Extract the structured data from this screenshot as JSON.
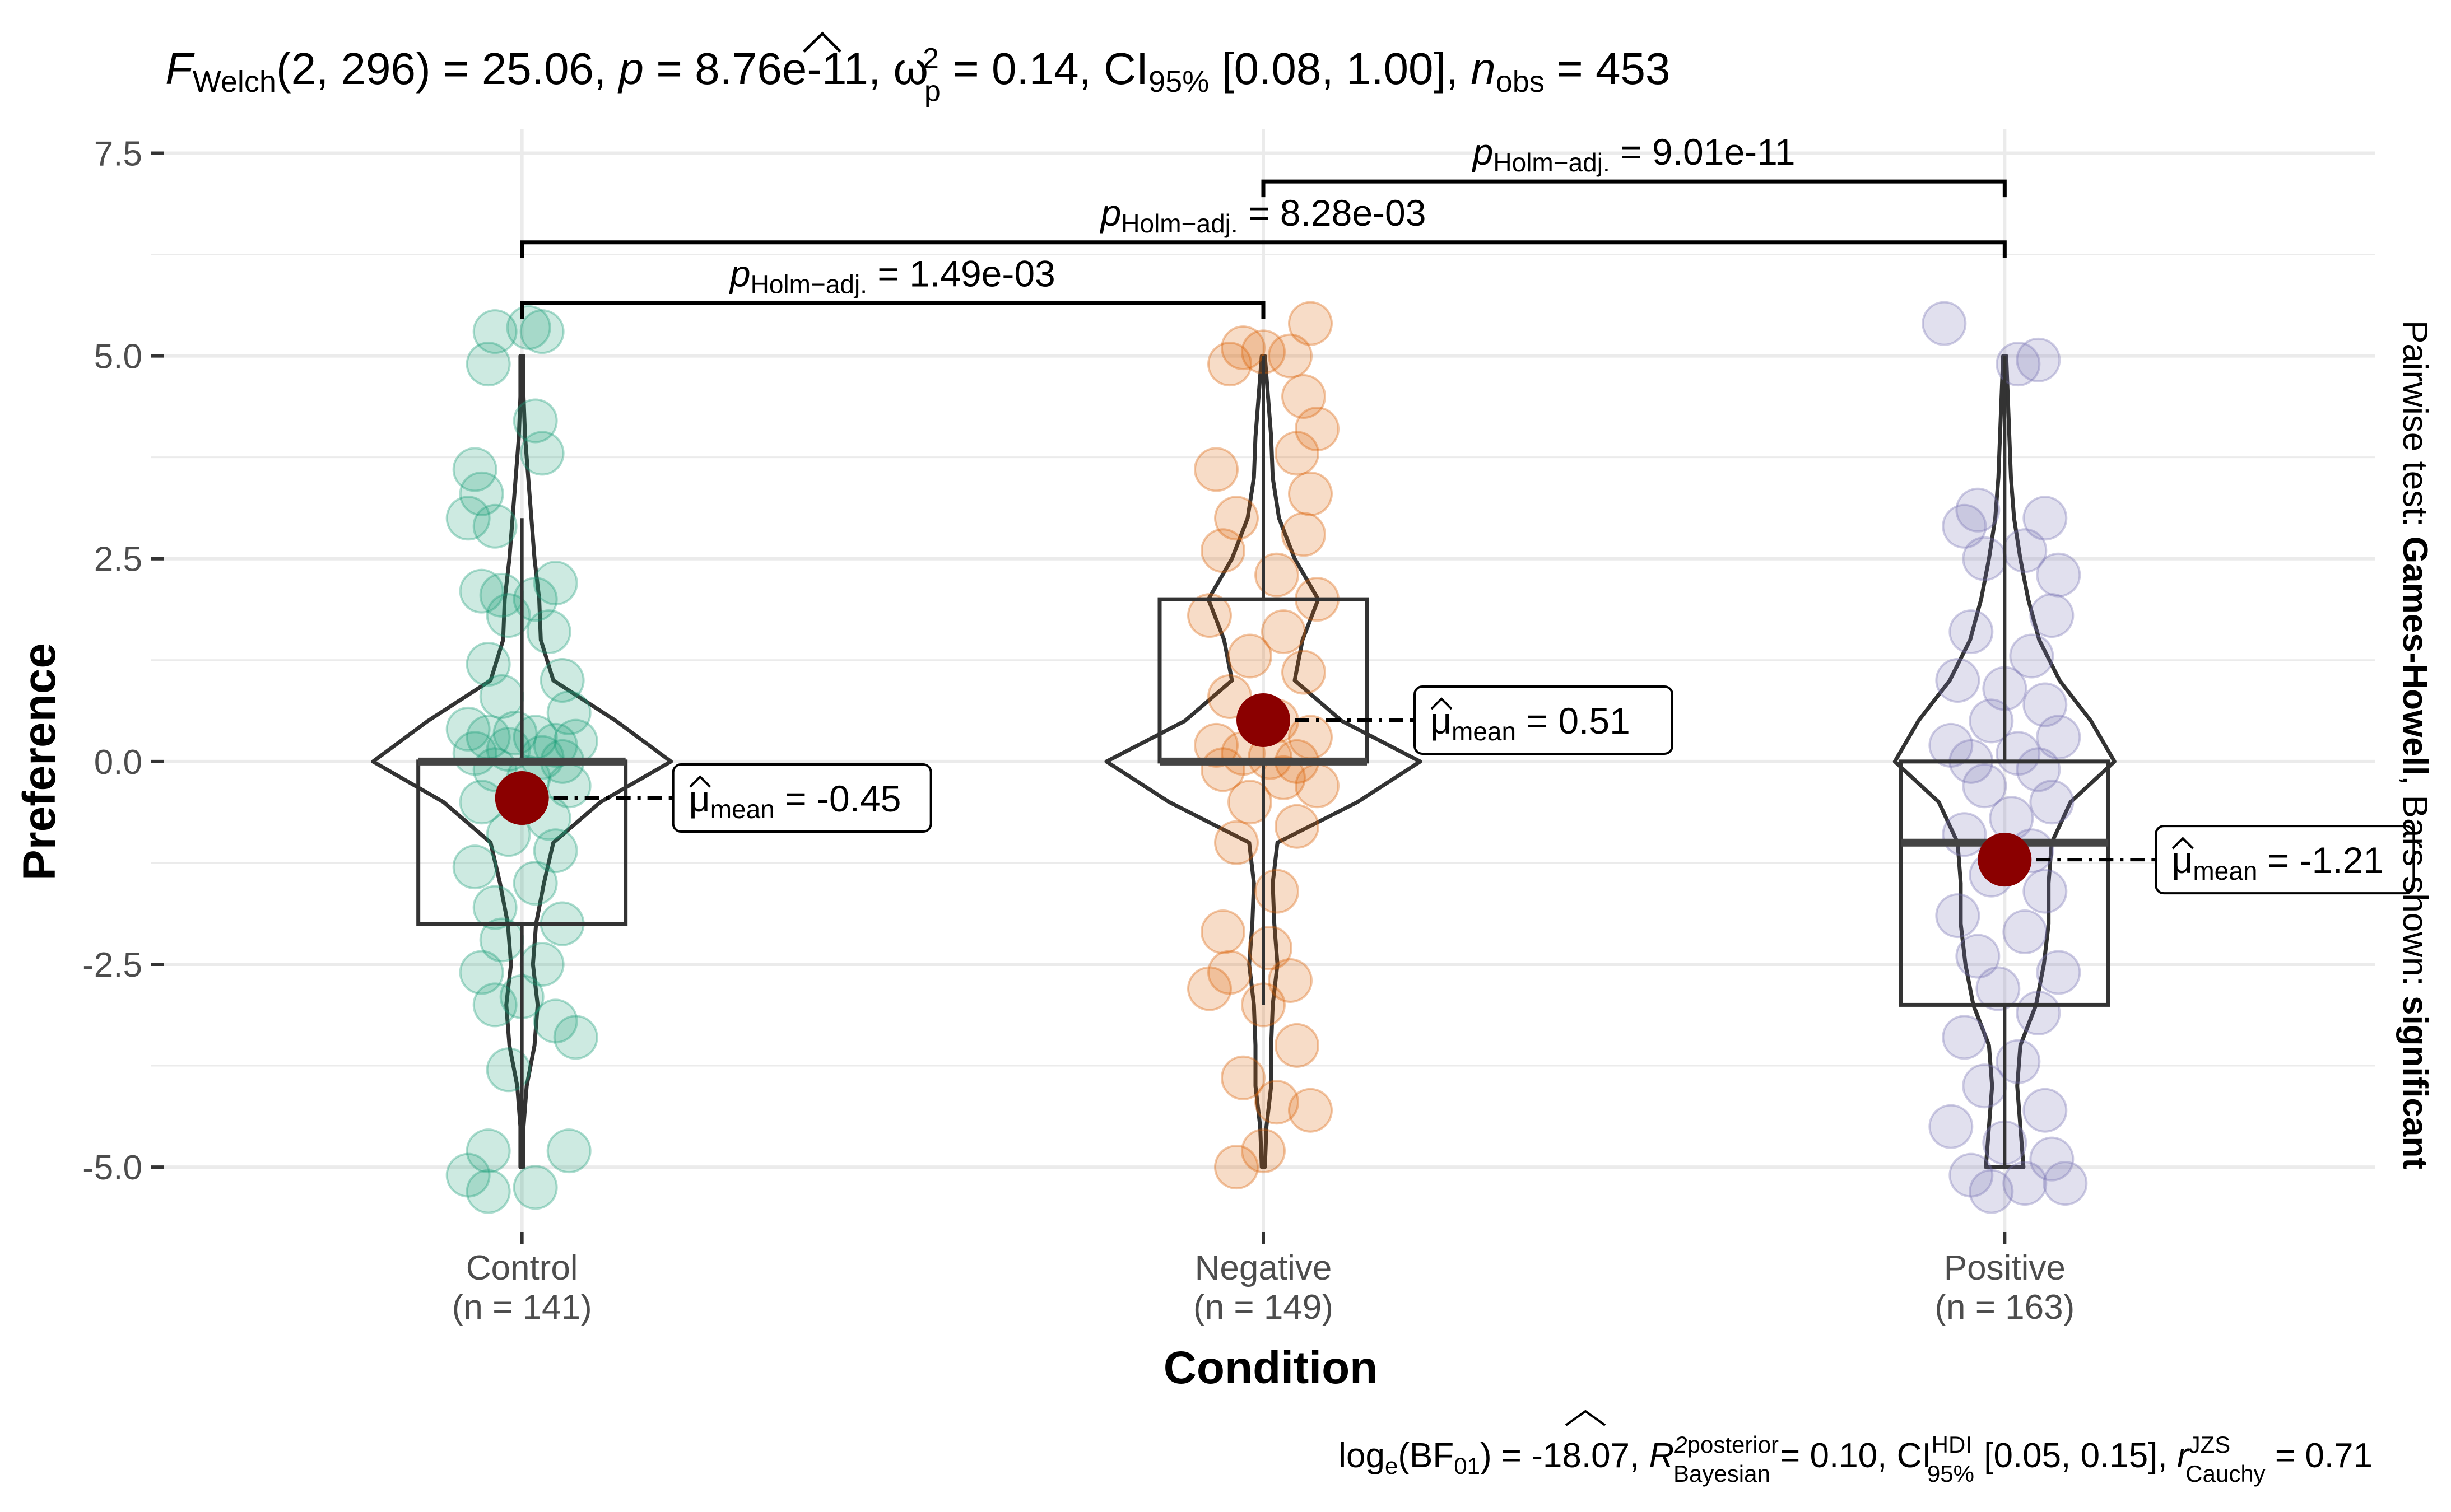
{
  "chart_data": {
    "type": "violin-box-scatter",
    "title": {
      "welch_prefix": "F",
      "welch_sub": "Welch",
      "welch_df": "(2, 296) = 25.06, ",
      "p_label": "p",
      "p_value": " = 8.76e-11, ",
      "omega_label": "ω",
      "omega_sup": "2",
      "omega_sub": "p",
      "omega_value": " = 0.14, CI",
      "ci_sub": "95%",
      "ci_value": " [0.08, 1.00], ",
      "n_label": "n",
      "n_sub": "obs",
      "n_value": " = 453"
    },
    "caption": {
      "log_prefix": "log",
      "log_sub": "e",
      "bf": "(BF",
      "bf_sub": "01",
      "bf_value": ") = -18.07, ",
      "r2": "R",
      "r2_sup": "2",
      "posterior_sup": "posterior",
      "bayesian_sub": "Bayesian",
      "r2_value": " = 0.10, CI",
      "hdi_sup": "HDI",
      "hdi_sub": "95%",
      "hdi_value": " [0.05, 0.15], ",
      "r_label": "r",
      "jzs_sup": "JZS",
      "cauchy_sub": "Cauchy",
      "r_value": " = 0.71"
    },
    "xlabel": "Condition",
    "ylabel": "Preference",
    "right_label": {
      "prefix": "Pairwise test: ",
      "test": "Games-Howell",
      "middle": ", Bars shown: ",
      "shown": "significant"
    },
    "ylim": [
      -5.8,
      7.8
    ],
    "yticks": [
      -5.0,
      -2.5,
      0.0,
      2.5,
      5.0,
      7.5
    ],
    "ytick_labels": [
      "-5.0",
      "-2.5",
      "0.0",
      "2.5",
      "5.0",
      "7.5"
    ],
    "grid": true,
    "mean_symbol": "μ",
    "mean_sub": "mean",
    "groups": [
      {
        "name": "Control",
        "n_label": "(n = 141)",
        "color": "#1b9e77",
        "box": {
          "q1": -2.0,
          "median": 0.0,
          "q3": 0.0,
          "whisker_low": -5.0,
          "whisker_high": 3.0
        },
        "mean": -0.45,
        "mean_label": " = -0.45",
        "violin": [
          [
            -5.0,
            0.01
          ],
          [
            -4.5,
            0.01
          ],
          [
            -4.0,
            0.03
          ],
          [
            -3.5,
            0.08
          ],
          [
            -3.0,
            0.1
          ],
          [
            -2.5,
            0.07
          ],
          [
            -2.0,
            0.09
          ],
          [
            -1.5,
            0.14
          ],
          [
            -1.0,
            0.2
          ],
          [
            -0.5,
            0.5
          ],
          [
            0.0,
            0.95
          ],
          [
            0.5,
            0.6
          ],
          [
            1.0,
            0.2
          ],
          [
            1.5,
            0.12
          ],
          [
            2.0,
            0.11
          ],
          [
            2.5,
            0.08
          ],
          [
            3.0,
            0.06
          ],
          [
            3.5,
            0.04
          ],
          [
            4.0,
            0.02
          ],
          [
            4.5,
            0.01
          ],
          [
            5.0,
            0.01
          ]
        ],
        "points": [
          [
            -0.04,
            5.3
          ],
          [
            0.01,
            5.35
          ],
          [
            0.03,
            5.3
          ],
          [
            -0.05,
            4.9
          ],
          [
            0.02,
            4.2
          ],
          [
            0.03,
            3.8
          ],
          [
            -0.07,
            3.6
          ],
          [
            -0.06,
            3.3
          ],
          [
            -0.08,
            3.0
          ],
          [
            -0.04,
            2.9
          ],
          [
            -0.06,
            2.1
          ],
          [
            -0.03,
            2.05
          ],
          [
            0.02,
            2.0
          ],
          [
            0.05,
            2.2
          ],
          [
            -0.02,
            1.8
          ],
          [
            0.04,
            1.6
          ],
          [
            -0.05,
            1.2
          ],
          [
            0.06,
            1.0
          ],
          [
            -0.03,
            0.8
          ],
          [
            0.07,
            0.6
          ],
          [
            -0.08,
            0.4
          ],
          [
            -0.05,
            0.3
          ],
          [
            -0.01,
            0.35
          ],
          [
            0.02,
            0.3
          ],
          [
            0.05,
            0.2
          ],
          [
            0.08,
            0.25
          ],
          [
            -0.07,
            0.1
          ],
          [
            -0.02,
            0.15
          ],
          [
            0.03,
            0.05
          ],
          [
            0.06,
            0.0
          ],
          [
            -0.04,
            -0.1
          ],
          [
            0.01,
            -0.2
          ],
          [
            0.07,
            -0.3
          ],
          [
            -0.06,
            -0.5
          ],
          [
            0.04,
            -0.7
          ],
          [
            -0.02,
            -0.9
          ],
          [
            0.05,
            -1.1
          ],
          [
            -0.07,
            -1.3
          ],
          [
            0.02,
            -1.5
          ],
          [
            -0.04,
            -1.8
          ],
          [
            0.06,
            -2.0
          ],
          [
            -0.03,
            -2.2
          ],
          [
            0.03,
            -2.5
          ],
          [
            -0.06,
            -2.6
          ],
          [
            0.0,
            -2.9
          ],
          [
            -0.04,
            -3.0
          ],
          [
            0.05,
            -3.2
          ],
          [
            0.08,
            -3.4
          ],
          [
            -0.02,
            -3.8
          ],
          [
            -0.05,
            -4.8
          ],
          [
            0.07,
            -4.8
          ],
          [
            -0.08,
            -5.1
          ],
          [
            -0.05,
            -5.3
          ],
          [
            0.02,
            -5.25
          ]
        ]
      },
      {
        "name": "Negative",
        "n_label": "(n = 149)",
        "color": "#d95f02",
        "box": {
          "q1": 0.0,
          "median": 0.0,
          "q3": 2.0,
          "whisker_low": -3.0,
          "whisker_high": 5.0
        },
        "mean": 0.51,
        "mean_label": " = 0.51",
        "violin": [
          [
            -5.0,
            0.01
          ],
          [
            -4.5,
            0.02
          ],
          [
            -4.0,
            0.05
          ],
          [
            -3.5,
            0.05
          ],
          [
            -3.0,
            0.06
          ],
          [
            -2.5,
            0.09
          ],
          [
            -2.0,
            0.07
          ],
          [
            -1.5,
            0.06
          ],
          [
            -1.0,
            0.09
          ],
          [
            -0.5,
            0.6
          ],
          [
            0.0,
            1.0
          ],
          [
            0.5,
            0.5
          ],
          [
            1.0,
            0.2
          ],
          [
            1.5,
            0.25
          ],
          [
            2.0,
            0.35
          ],
          [
            2.5,
            0.2
          ],
          [
            3.0,
            0.1
          ],
          [
            3.5,
            0.06
          ],
          [
            4.0,
            0.05
          ],
          [
            4.5,
            0.03
          ],
          [
            5.0,
            0.01
          ]
        ],
        "points": [
          [
            -0.03,
            5.1
          ],
          [
            0.0,
            5.05
          ],
          [
            0.04,
            5.0
          ],
          [
            0.07,
            5.4
          ],
          [
            -0.05,
            4.9
          ],
          [
            0.06,
            4.5
          ],
          [
            0.08,
            4.1
          ],
          [
            -0.07,
            3.6
          ],
          [
            0.05,
            3.8
          ],
          [
            0.07,
            3.3
          ],
          [
            -0.04,
            3.0
          ],
          [
            0.06,
            2.8
          ],
          [
            -0.06,
            2.6
          ],
          [
            0.02,
            2.3
          ],
          [
            0.08,
            2.0
          ],
          [
            -0.08,
            1.8
          ],
          [
            0.03,
            1.6
          ],
          [
            -0.02,
            1.3
          ],
          [
            0.06,
            1.1
          ],
          [
            -0.05,
            0.8
          ],
          [
            0.02,
            0.5
          ],
          [
            0.07,
            0.3
          ],
          [
            -0.07,
            0.2
          ],
          [
            -0.03,
            0.1
          ],
          [
            0.01,
            0.05
          ],
          [
            0.05,
            0.0
          ],
          [
            -0.06,
            -0.1
          ],
          [
            0.03,
            -0.2
          ],
          [
            0.08,
            -0.3
          ],
          [
            -0.02,
            -0.5
          ],
          [
            0.05,
            -0.8
          ],
          [
            -0.04,
            -1.0
          ],
          [
            0.02,
            -1.6
          ],
          [
            -0.06,
            -2.1
          ],
          [
            0.01,
            -2.3
          ],
          [
            -0.05,
            -2.6
          ],
          [
            0.04,
            -2.7
          ],
          [
            -0.08,
            -2.8
          ],
          [
            0.0,
            -3.0
          ],
          [
            0.05,
            -3.5
          ],
          [
            -0.03,
            -3.9
          ],
          [
            0.07,
            -4.3
          ],
          [
            0.02,
            -4.2
          ],
          [
            -0.04,
            -5.0
          ],
          [
            0.0,
            -4.8
          ]
        ]
      },
      {
        "name": "Positive",
        "n_label": "(n = 163)",
        "color": "#7570b3",
        "box": {
          "q1": -3.0,
          "median": -1.0,
          "q3": 0.0,
          "whisker_low": -5.0,
          "whisker_high": 5.0
        },
        "mean": -1.21,
        "mean_label": " = -1.21",
        "violin": [
          [
            -5.0,
            0.12
          ],
          [
            -4.5,
            0.1
          ],
          [
            -4.0,
            0.08
          ],
          [
            -3.5,
            0.1
          ],
          [
            -3.0,
            0.2
          ],
          [
            -2.5,
            0.25
          ],
          [
            -2.0,
            0.28
          ],
          [
            -1.5,
            0.28
          ],
          [
            -1.0,
            0.3
          ],
          [
            -0.5,
            0.42
          ],
          [
            0.0,
            0.7
          ],
          [
            0.5,
            0.55
          ],
          [
            1.0,
            0.35
          ],
          [
            1.5,
            0.22
          ],
          [
            2.0,
            0.15
          ],
          [
            2.5,
            0.1
          ],
          [
            3.0,
            0.06
          ],
          [
            3.5,
            0.04
          ],
          [
            4.0,
            0.03
          ],
          [
            4.5,
            0.02
          ],
          [
            5.0,
            0.01
          ]
        ],
        "points": [
          [
            -0.09,
            5.4
          ],
          [
            0.02,
            4.9
          ],
          [
            0.05,
            4.95
          ],
          [
            -0.04,
            3.1
          ],
          [
            0.06,
            3.0
          ],
          [
            -0.06,
            2.9
          ],
          [
            0.03,
            2.6
          ],
          [
            -0.03,
            2.5
          ],
          [
            0.08,
            2.3
          ],
          [
            0.07,
            1.8
          ],
          [
            -0.05,
            1.6
          ],
          [
            0.04,
            1.3
          ],
          [
            -0.07,
            1.0
          ],
          [
            0.0,
            0.9
          ],
          [
            0.06,
            0.7
          ],
          [
            -0.02,
            0.5
          ],
          [
            0.08,
            0.3
          ],
          [
            -0.08,
            0.2
          ],
          [
            0.02,
            0.1
          ],
          [
            -0.05,
            0.0
          ],
          [
            0.05,
            -0.1
          ],
          [
            -0.03,
            -0.3
          ],
          [
            0.07,
            -0.5
          ],
          [
            0.01,
            -0.7
          ],
          [
            -0.06,
            -0.9
          ],
          [
            0.04,
            -1.1
          ],
          [
            -0.02,
            -1.4
          ],
          [
            0.06,
            -1.6
          ],
          [
            -0.07,
            -1.9
          ],
          [
            0.03,
            -2.1
          ],
          [
            -0.04,
            -2.4
          ],
          [
            0.08,
            -2.6
          ],
          [
            -0.01,
            -2.8
          ],
          [
            0.05,
            -3.1
          ],
          [
            -0.06,
            -3.4
          ],
          [
            0.02,
            -3.7
          ],
          [
            -0.03,
            -4.0
          ],
          [
            0.06,
            -4.3
          ],
          [
            -0.08,
            -4.5
          ],
          [
            0.0,
            -4.7
          ],
          [
            0.07,
            -4.9
          ],
          [
            -0.05,
            -5.1
          ],
          [
            0.03,
            -5.2
          ],
          [
            -0.02,
            -5.3
          ],
          [
            0.09,
            -5.2
          ]
        ]
      }
    ],
    "comparisons": [
      {
        "from": 0,
        "to": 1,
        "y": 5.65,
        "p_label": "p",
        "p_sub": "Holm−adj.",
        "p_value": " = 1.49e-03"
      },
      {
        "from": 0,
        "to": 2,
        "y": 6.4,
        "p_label": "p",
        "p_sub": "Holm−adj.",
        "p_value": " = 8.28e-03"
      },
      {
        "from": 1,
        "to": 2,
        "y": 7.15,
        "p_label": "p",
        "p_sub": "Holm−adj.",
        "p_value": " = 9.01e-11"
      }
    ]
  }
}
